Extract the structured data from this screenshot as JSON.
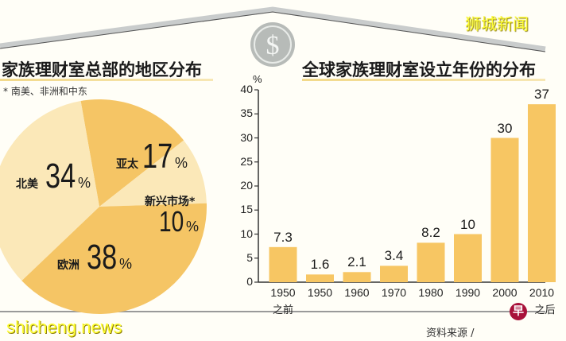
{
  "brand": {
    "top_watermark": "狮城新闻",
    "bottom_watermark": "shicheng.news",
    "source_label": "资料来源 /",
    "logo_glyph": "早"
  },
  "colors": {
    "background": "#fffef7",
    "pie_dark": "#f5c565",
    "pie_light": "#fbe8b8",
    "bar": "#f7c663",
    "roof": "#b9bcbc",
    "coin": "#b7bbb8",
    "brand_yellow": "#ffff33",
    "logo_red": "#a8123a"
  },
  "coin_icon": {
    "symbol": "$"
  },
  "chart_data": [
    {
      "type": "pie",
      "title": "家族理财室总部的地区分布",
      "footnote": "* 南美、非洲和中东",
      "categories": [
        "亚太",
        "新兴市场*",
        "欧洲",
        "北美"
      ],
      "values": [
        17,
        10,
        38,
        34
      ],
      "unit": "%",
      "labels": [
        {
          "name": "亚太",
          "value": "17",
          "unit": "%"
        },
        {
          "name": "新兴市场*",
          "value": "10",
          "unit": "%"
        },
        {
          "name": "欧洲",
          "value": "38",
          "unit": "%"
        },
        {
          "name": "北美",
          "value": "34",
          "unit": "%"
        }
      ]
    },
    {
      "type": "bar",
      "title": "全球家族理财室设立年份的分布",
      "ylabel": "%",
      "xlabel": "",
      "ylim": [
        0,
        40
      ],
      "yticks": [
        "0",
        "5",
        "10",
        "15",
        "20",
        "25",
        "30",
        "35",
        "40"
      ],
      "grid": false,
      "categories": [
        "1950之前",
        "1950",
        "1960",
        "1970",
        "1980",
        "1990",
        "2000",
        "2010之后"
      ],
      "x_labels": [
        {
          "line1": "1950",
          "line2": "之前"
        },
        {
          "line1": "1950",
          "line2": ""
        },
        {
          "line1": "1960",
          "line2": ""
        },
        {
          "line1": "1970",
          "line2": ""
        },
        {
          "line1": "1980",
          "line2": ""
        },
        {
          "line1": "1990",
          "line2": ""
        },
        {
          "line1": "2000",
          "line2": ""
        },
        {
          "line1": "2010",
          "line2": "之后"
        }
      ],
      "values": [
        7.3,
        1.6,
        2.1,
        3.4,
        8.2,
        10,
        30,
        37
      ],
      "value_labels": [
        "7.3",
        "1.6",
        "2.1",
        "3.4",
        "8.2",
        "10",
        "30",
        "37"
      ]
    }
  ]
}
